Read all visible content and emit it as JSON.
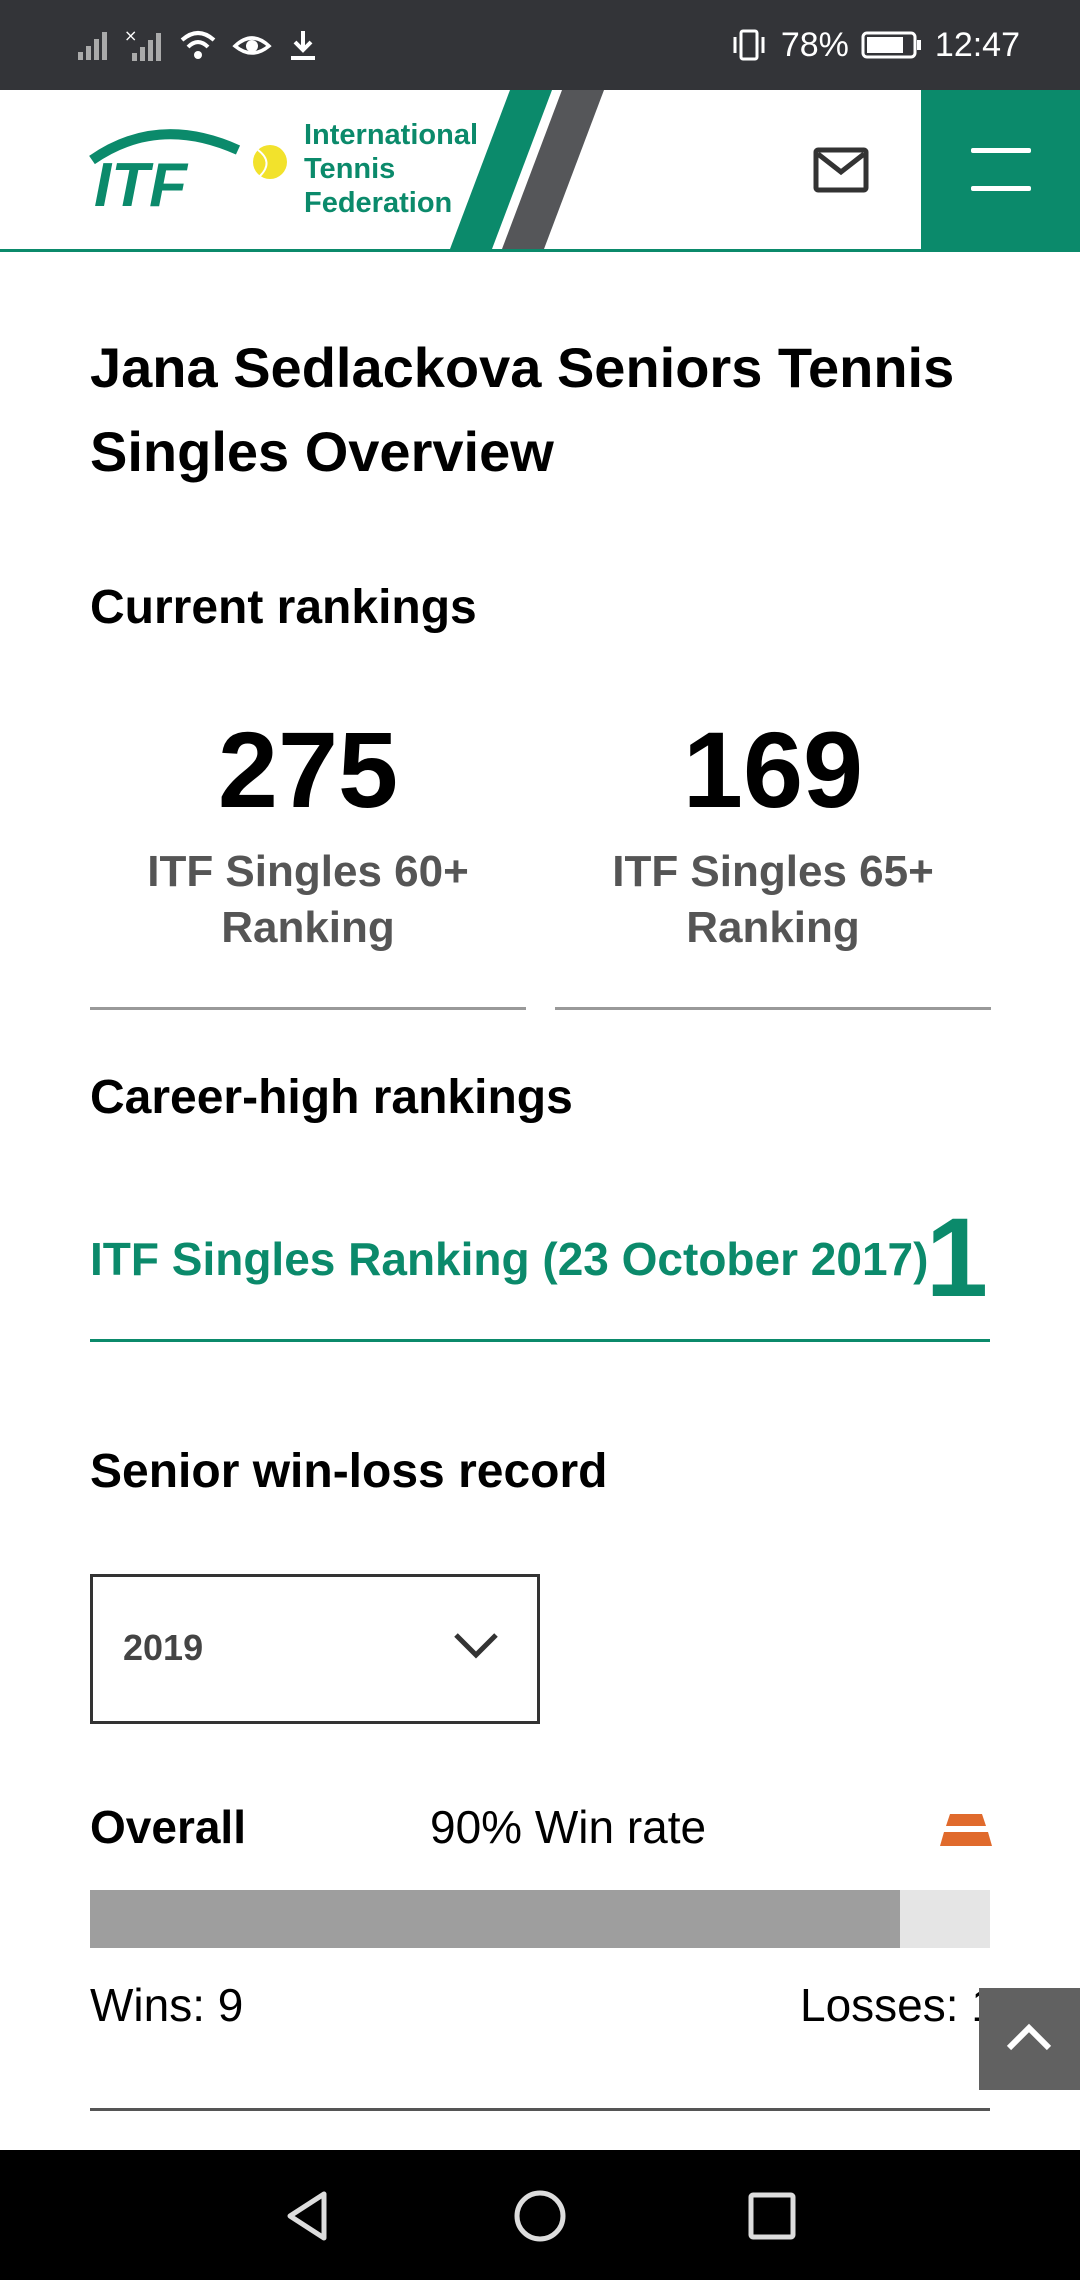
{
  "status_bar": {
    "battery": "78%",
    "time": "12:47"
  },
  "header": {
    "logo_mark": "ITF",
    "logo_text_line1": "International",
    "logo_text_line2": "Tennis",
    "logo_text_line3": "Federation"
  },
  "page": {
    "title": "Jana Sedlackova Seniors Tennis Singles Overview"
  },
  "current_rankings": {
    "heading": "Current rankings",
    "items": [
      {
        "value": "275",
        "label": "ITF Singles 60+ Ranking"
      },
      {
        "value": "169",
        "label": "ITF Singles 65+ Ranking"
      }
    ]
  },
  "career_high": {
    "heading": "Career-high rankings",
    "label": "ITF Singles Ranking (23 October 2017)",
    "value": "1"
  },
  "win_loss": {
    "heading": "Senior win-loss record",
    "year_selected": "2019",
    "overall_label": "Overall",
    "win_rate_text": "90% Win rate",
    "win_fraction": 0.9,
    "wins_text": "Wins: 9",
    "losses_text": "Losses: 1"
  },
  "colors": {
    "brand_green": "#0b8a6b",
    "clay_orange": "#e06a2c",
    "bar_fill": "#9e9e9e",
    "bar_track": "#e5e5e5"
  },
  "icons": [
    "signal-icon",
    "wifi-icon",
    "eye-icon",
    "download-icon",
    "vibrate-icon",
    "battery-icon",
    "mail-icon",
    "menu-icon",
    "chevron-down-icon",
    "clay-court-icon",
    "chevron-up-icon",
    "back-icon",
    "home-icon",
    "recents-icon"
  ]
}
